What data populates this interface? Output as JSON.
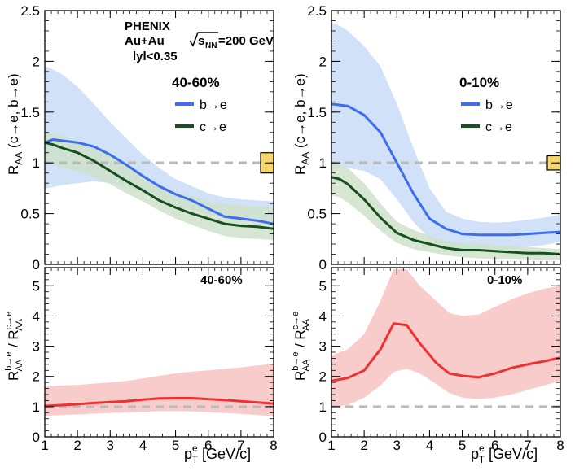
{
  "chart_data": {
    "type": "line",
    "experiment": "PHENIX",
    "system_label": "Au+Au",
    "energy_sqrt": "s",
    "energy_sub": "NN",
    "energy_value": "=200 GeV",
    "rapidity_label": "lyl<0.35",
    "xlabel_main": "p",
    "xlabel_sub": "T",
    "xlabel_sup": "e",
    "xlabel_units": " [GeV/c]",
    "xlim": [
      1,
      8
    ],
    "x_ticks": [
      "1",
      "2",
      "3",
      "4",
      "5",
      "6",
      "7",
      "8"
    ],
    "raa_ylabel": {
      "main": "R",
      "sub": "AA",
      "rest": " (c→e, b→e)"
    },
    "raa_ylim": [
      0,
      2.5
    ],
    "raa_ticks": [
      "0",
      "0.5",
      "1",
      "1.5",
      "2",
      "2.5"
    ],
    "ratio_ylabel": {
      "r1": "R",
      "sup1": "b→e",
      "sub1": "AA",
      "slash": " / ",
      "r2": "R",
      "sup2": "c→e",
      "sub2": "AA"
    },
    "ratio_ylim": [
      0,
      5.6
    ],
    "ratio_ticks": [
      "0",
      "1",
      "2",
      "3",
      "4",
      "5"
    ],
    "reference_line": 1,
    "colors": {
      "b_line": "#3c6df0",
      "b_band": "#c9dcf6",
      "c_line": "#17501f",
      "c_band": "#cfe2cb",
      "ratio_line": "#ee3030",
      "ratio_band": "#f9cccc",
      "ref_line": "#bbbbbb",
      "norm_box": "#f7d66a"
    },
    "panels": [
      {
        "centrality": "40-60%",
        "legend": [
          "b→e",
          "c→e"
        ],
        "norm_box": [
          0.9,
          1.1
        ],
        "x": [
          1.0,
          1.25,
          1.5,
          2.0,
          2.5,
          3.0,
          3.5,
          4.0,
          4.5,
          5.0,
          5.5,
          6.0,
          6.5,
          7.0,
          7.5,
          8.0
        ],
        "b_e": {
          "center": [
            1.2,
            1.23,
            1.22,
            1.2,
            1.16,
            1.08,
            0.98,
            0.87,
            0.77,
            0.69,
            0.63,
            0.55,
            0.47,
            0.45,
            0.43,
            0.4
          ],
          "low": [
            0.75,
            0.76,
            0.78,
            0.8,
            0.82,
            0.8,
            0.76,
            0.7,
            0.64,
            0.58,
            0.54,
            0.49,
            0.45,
            0.43,
            0.42,
            0.4
          ],
          "high": [
            1.95,
            1.92,
            1.88,
            1.75,
            1.58,
            1.4,
            1.24,
            1.08,
            0.95,
            0.84,
            0.77,
            0.7,
            0.66,
            0.64,
            0.63,
            0.62
          ]
        },
        "c_e": {
          "center": [
            1.2,
            1.18,
            1.15,
            1.1,
            1.02,
            0.92,
            0.82,
            0.73,
            0.63,
            0.56,
            0.5,
            0.45,
            0.4,
            0.38,
            0.37,
            0.35
          ],
          "low": [
            1.0,
            0.98,
            0.96,
            0.92,
            0.86,
            0.79,
            0.7,
            0.62,
            0.53,
            0.45,
            0.39,
            0.33,
            0.28,
            0.26,
            0.25,
            0.24
          ],
          "high": [
            1.3,
            1.29,
            1.27,
            1.22,
            1.16,
            1.08,
            0.98,
            0.88,
            0.78,
            0.72,
            0.67,
            0.62,
            0.6,
            0.58,
            0.57,
            0.56
          ]
        },
        "ratio": {
          "x": [
            1.0,
            1.5,
            2.0,
            2.5,
            3.0,
            3.5,
            4.0,
            4.5,
            5.0,
            5.5,
            6.0,
            6.5,
            7.0,
            7.5,
            8.0
          ],
          "center": [
            1.02,
            1.05,
            1.08,
            1.12,
            1.15,
            1.18,
            1.23,
            1.27,
            1.28,
            1.28,
            1.25,
            1.22,
            1.18,
            1.14,
            1.1
          ],
          "low": [
            0.7,
            0.72,
            0.74,
            0.77,
            0.79,
            0.81,
            0.83,
            0.85,
            0.85,
            0.84,
            0.82,
            0.79,
            0.76,
            0.72,
            0.68
          ],
          "high": [
            1.65,
            1.7,
            1.72,
            1.76,
            1.8,
            1.85,
            1.93,
            2.02,
            2.1,
            2.16,
            2.2,
            2.25,
            2.3,
            2.36,
            2.42
          ]
        }
      },
      {
        "centrality": "0-10%",
        "legend": [
          "b→e",
          "c→e"
        ],
        "norm_box": [
          0.93,
          1.07
        ],
        "x": [
          1.0,
          1.25,
          1.5,
          2.0,
          2.5,
          3.0,
          3.5,
          4.0,
          4.5,
          5.0,
          5.5,
          6.0,
          6.5,
          7.0,
          7.5,
          8.0
        ],
        "b_e": {
          "center": [
            1.58,
            1.57,
            1.56,
            1.47,
            1.3,
            1.0,
            0.7,
            0.45,
            0.35,
            0.3,
            0.29,
            0.29,
            0.29,
            0.3,
            0.31,
            0.32
          ],
          "low": [
            0.95,
            0.95,
            0.95,
            0.92,
            0.84,
            0.64,
            0.42,
            0.25,
            0.16,
            0.12,
            0.12,
            0.13,
            0.15,
            0.17,
            0.19,
            0.22
          ],
          "high": [
            2.38,
            2.35,
            2.3,
            2.15,
            1.95,
            1.58,
            1.15,
            0.75,
            0.52,
            0.45,
            0.42,
            0.41,
            0.42,
            0.44,
            0.46,
            0.49
          ]
        },
        "c_e": {
          "center": [
            0.86,
            0.84,
            0.79,
            0.64,
            0.46,
            0.31,
            0.24,
            0.2,
            0.16,
            0.14,
            0.14,
            0.13,
            0.12,
            0.11,
            0.11,
            0.1
          ],
          "low": [
            0.68,
            0.66,
            0.61,
            0.48,
            0.33,
            0.21,
            0.15,
            0.12,
            0.09,
            0.07,
            0.06,
            0.05,
            0.05,
            0.04,
            0.04,
            0.04
          ],
          "high": [
            1.0,
            0.98,
            0.95,
            0.8,
            0.6,
            0.42,
            0.34,
            0.28,
            0.23,
            0.21,
            0.2,
            0.19,
            0.18,
            0.17,
            0.16,
            0.15
          ]
        },
        "ratio": {
          "x": [
            1.0,
            1.5,
            2.0,
            2.5,
            2.9,
            3.3,
            3.7,
            4.2,
            4.6,
            5.0,
            5.5,
            6.0,
            6.5,
            7.0,
            7.5,
            8.0
          ],
          "center": [
            1.85,
            1.95,
            2.2,
            2.9,
            3.75,
            3.7,
            3.1,
            2.45,
            2.1,
            2.02,
            1.97,
            2.1,
            2.28,
            2.4,
            2.5,
            2.62
          ],
          "low": [
            1.0,
            1.05,
            1.3,
            1.7,
            2.15,
            2.25,
            2.1,
            1.75,
            1.45,
            1.3,
            1.25,
            1.3,
            1.4,
            1.55,
            1.7,
            1.85
          ],
          "high": [
            2.7,
            2.9,
            3.4,
            4.5,
            5.55,
            5.55,
            5.0,
            4.5,
            4.1,
            4.0,
            4.05,
            4.3,
            4.55,
            4.75,
            4.9,
            5.0
          ]
        }
      }
    ]
  }
}
